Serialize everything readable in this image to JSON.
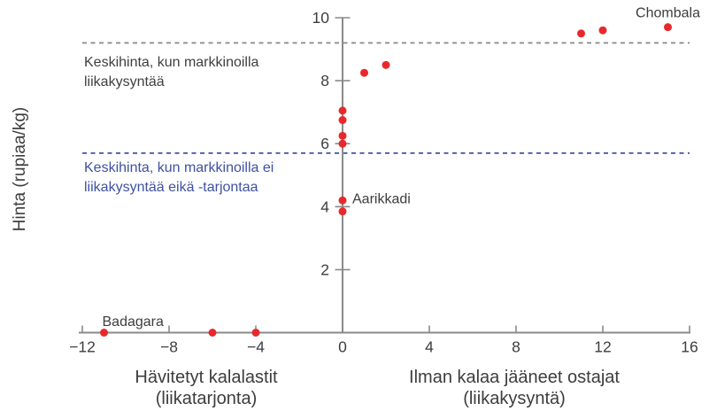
{
  "chart_data": {
    "type": "scatter",
    "ylabel": "Hinta (rupiaa/kg)",
    "xlabel_left_line1": "Hävitetyt kalalastit",
    "xlabel_left_line2": "(liikatarjonta)",
    "xlabel_right_line1": "Ilman kalaa jääneet ostajat",
    "xlabel_right_line2": "(liikakysyntä)",
    "xlim": [
      -12,
      16
    ],
    "ylim": [
      0,
      10
    ],
    "x_ticks": [
      -12,
      -8,
      -4,
      0,
      4,
      8,
      12,
      16
    ],
    "y_ticks": [
      2,
      4,
      6,
      8,
      10
    ],
    "grid": false,
    "points": [
      {
        "x": -11,
        "y": 0,
        "label": "Badagara",
        "label_pos": "above-right"
      },
      {
        "x": -6,
        "y": 0
      },
      {
        "x": -4,
        "y": 0
      },
      {
        "x": 0,
        "y": 3.85
      },
      {
        "x": 0,
        "y": 4.2,
        "label": "Aarikkadi",
        "label_pos": "right"
      },
      {
        "x": 0,
        "y": 6.0
      },
      {
        "x": 0,
        "y": 6.25
      },
      {
        "x": 0,
        "y": 6.75
      },
      {
        "x": 0,
        "y": 7.05
      },
      {
        "x": 1,
        "y": 8.25
      },
      {
        "x": 2,
        "y": 8.5
      },
      {
        "x": 11,
        "y": 9.5
      },
      {
        "x": 12,
        "y": 9.6
      },
      {
        "x": 15,
        "y": 9.7,
        "label": "Chombala",
        "label_pos": "above"
      }
    ],
    "reference_lines": [
      {
        "y": 9.2,
        "style": "dashed",
        "color": "#8e8e8e",
        "label_lines": [
          "Keskihinta, kun markkinoilla",
          "liikakysyntää"
        ],
        "label_color": "#3f3f3f"
      },
      {
        "y": 5.7,
        "style": "dashed",
        "color": "#4153a0",
        "label_lines": [
          "Keskihinta, kun markkinoilla ei",
          "liikakysyntää eikä -tarjontaa"
        ],
        "label_color": "#3e51a3"
      }
    ],
    "point_color": "#e8292c",
    "axis_color": "#8a8a8a",
    "text_color": "#3d3d3d"
  }
}
